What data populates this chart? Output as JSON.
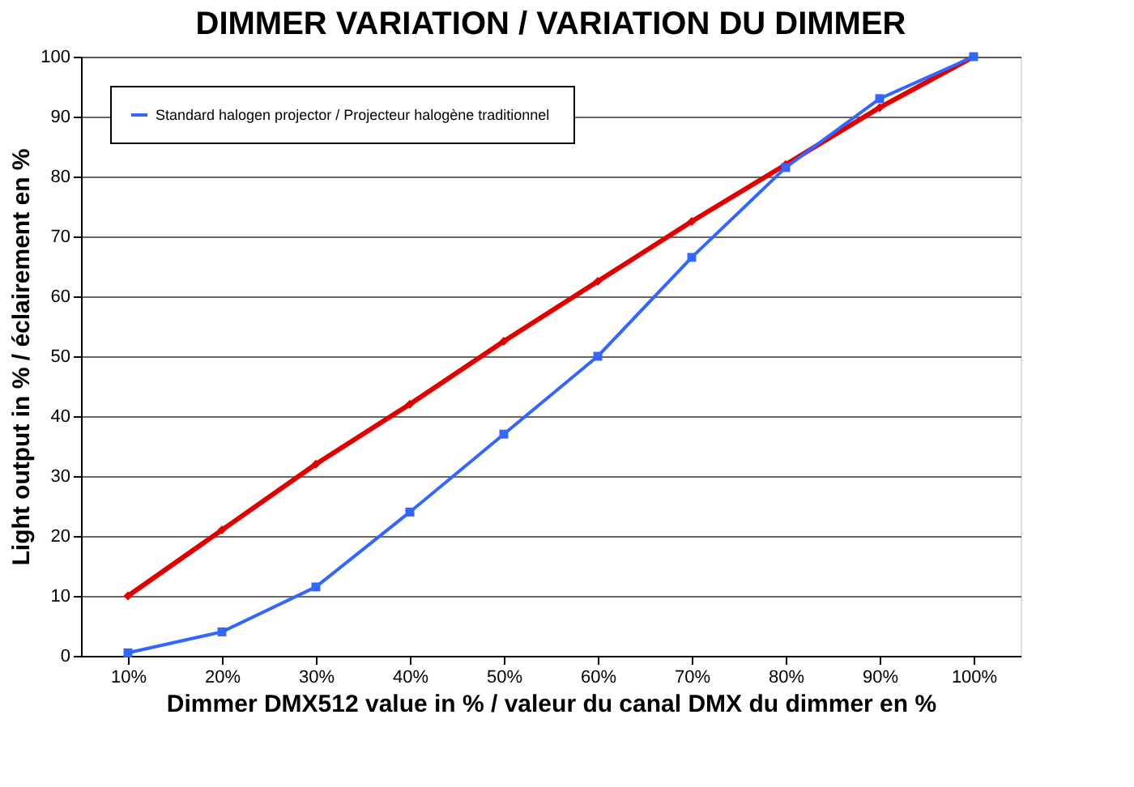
{
  "chart_data": {
    "type": "line",
    "title": "DIMMER VARIATION / VARIATION DU DIMMER",
    "xlabel": "Dimmer DMX512 value in % / valeur du canal DMX du dimmer en %",
    "ylabel": "Light output in % / éclairement en %",
    "categories": [
      "10%",
      "20%",
      "30%",
      "40%",
      "50%",
      "60%",
      "70%",
      "80%",
      "90%",
      "100%"
    ],
    "series": [
      {
        "color": "#e00000",
        "marker": "diamond",
        "values": [
          10,
          21,
          32,
          42,
          52.5,
          62.5,
          72.5,
          82,
          91.5,
          100
        ]
      },
      {
        "name": "Standard  halogen projector / Projecteur halogène traditionnel",
        "color": "#3366ff",
        "marker": "square",
        "values": [
          0.5,
          4,
          11.5,
          24,
          37,
          50,
          66.5,
          81.5,
          93,
          100
        ]
      }
    ],
    "ylim": [
      0,
      100
    ],
    "yticks": [
      0,
      10,
      20,
      30,
      40,
      50,
      60,
      70,
      80,
      90,
      100
    ],
    "grid": "y",
    "legend": "top left",
    "line_style": "solid"
  }
}
